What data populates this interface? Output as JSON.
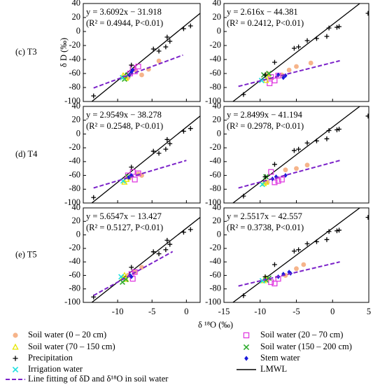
{
  "chart_data": {
    "type": "scatter",
    "ylabel": "δ D (‰)",
    "xlabel": "δ ¹⁸O (‰)",
    "legend": [
      {
        "name": "Soil water (0 – 20 cm)",
        "color": "#f6b48a",
        "marker": "circle"
      },
      {
        "name": "Soil water (20 – 70 cm)",
        "color": "#e03ce0",
        "marker": "square"
      },
      {
        "name": "Soil water (70 – 150 cm)",
        "color": "#e6e600",
        "marker": "triangle"
      },
      {
        "name": "Soil water (150 – 200 cm)",
        "color": "#2eab2e",
        "marker": "x"
      },
      {
        "name": "Precipitation",
        "color": "#000000",
        "marker": "plus"
      },
      {
        "name": "Stem water",
        "color": "#1a1adb",
        "marker": "diamond"
      },
      {
        "name": "Irrigation water",
        "color": "#1ee0e0",
        "marker": "x"
      }
    ],
    "lmwl": {
      "name": "LMWL",
      "color": "#000000",
      "slope": 8,
      "intercept": 10
    },
    "fit_line": {
      "name": "Line fitting of δD and  δ¹⁸O in soil water",
      "color": "#7b22c9"
    },
    "panels": [
      {
        "row_label": "(c) T3",
        "equation": "y = 3.6092x − 31.918",
        "stats": "(R² = 0.4944, P<0.01)",
        "fit": {
          "slope": 3.6092,
          "intercept": -31.918,
          "x": [
            -13.5,
            -0.5
          ]
        },
        "xlim": [
          -15,
          2
        ],
        "xticks": [
          -10,
          -5,
          0
        ],
        "ylim": [
          -100,
          40
        ],
        "yticks": [
          -100,
          -80,
          -60,
          -40,
          -20,
          0,
          20,
          40
        ],
        "series": [
          {
            "x": [
              -7.5,
              -6.5,
              -5.5,
              -4,
              -8.5
            ],
            "values": [
              -55,
              -62,
              -54,
              -42,
              -66
            ]
          },
          {
            "x": [
              -7.8,
              -7,
              -8.2,
              -7.5
            ],
            "values": [
              -52,
              -50,
              -60,
              -57
            ]
          },
          {
            "x": [
              -9.2,
              -8.8,
              -9
            ],
            "values": [
              -63,
              -67,
              -65
            ]
          },
          {
            "x": [
              -8.5,
              -9
            ],
            "values": [
              -62,
              -68
            ]
          },
          {
            "x": [
              -13.5,
              -8,
              -4.8,
              -4,
              -3,
              -2.8,
              -2.4,
              -0.4,
              0.6
            ],
            "values": [
              -92,
              -48,
              -25,
              -28,
              -22,
              -8,
              -14,
              4,
              8
            ]
          },
          {
            "x": [
              -8,
              -8.3,
              -7.8
            ],
            "values": [
              -58,
              -62,
              -55
            ]
          },
          {
            "x": [
              -9.3
            ],
            "values": [
              -66
            ]
          }
        ]
      },
      {
        "equation": "y = 2.616x − 44.381",
        "stats": "(R² = 0.2412, P<0.01)",
        "fit": {
          "slope": 2.616,
          "intercept": -44.381,
          "x": [
            -13,
            1
          ]
        },
        "xlim": [
          -15,
          5
        ],
        "xticks": [
          -15,
          -10,
          -5,
          0,
          5
        ],
        "ylim": [
          -100,
          40
        ],
        "yticks": [
          -100,
          -80,
          -60,
          -40,
          -20,
          0,
          20,
          40
        ],
        "series": [
          {
            "x": [
              -9,
              -7,
              -6,
              -5,
              -3
            ],
            "values": [
              -60,
              -62,
              -55,
              -50,
              -45
            ]
          },
          {
            "x": [
              -8.5,
              -8,
              -8.7,
              -7.5
            ],
            "values": [
              -65,
              -70,
              -74,
              -63
            ]
          },
          {
            "x": [
              -9.2,
              -8.8
            ],
            "values": [
              -70,
              -65
            ]
          },
          {
            "x": [
              -9.5,
              -8.8
            ],
            "values": [
              -62,
              -60
            ]
          },
          {
            "x": [
              -12.3,
              -9.3,
              -8,
              -5.3,
              -4.7,
              -3.5,
              -2.2,
              -0.8,
              -0.5,
              0.6,
              0.9,
              4.9
            ],
            "values": [
              -90,
              -62,
              -44,
              -24,
              -22,
              -13,
              -10,
              -7,
              5,
              6,
              7,
              26
            ]
          },
          {
            "x": [
              -7.5,
              -6.5,
              -6.8
            ],
            "values": [
              -62,
              -63,
              -66
            ]
          },
          {
            "x": [
              -9.8
            ],
            "values": [
              -70
            ]
          }
        ]
      },
      {
        "row_label": "(d) T4",
        "equation": "y = 2.9549x − 38.278",
        "stats": "(R² = 0.2548, P<0.01)",
        "fit": {
          "slope": 2.9549,
          "intercept": -38.278,
          "x": [
            -13.5,
            0
          ]
        },
        "xlim": [
          -15,
          2
        ],
        "xticks": [
          -10,
          -5,
          0
        ],
        "ylim": [
          -100,
          40
        ],
        "yticks": [
          -100,
          -80,
          -60,
          -40,
          -20,
          0,
          20,
          40
        ],
        "series": [
          {
            "x": [
              -8.3,
              -7,
              -6.5
            ],
            "values": [
              -64,
              -58,
              -60
            ]
          },
          {
            "x": [
              -7.8,
              -7,
              -7.5,
              -8.5
            ],
            "values": [
              -55,
              -57,
              -66,
              -60
            ]
          },
          {
            "x": [
              -9,
              -8.7
            ],
            "values": [
              -70,
              -66
            ]
          },
          {
            "x": [
              -8.5
            ],
            "values": [
              -62
            ]
          },
          {
            "x": [
              -13.5,
              -8,
              -4.8,
              -4,
              -3,
              -2.8,
              -2.4,
              -0.4,
              0.6
            ],
            "values": [
              -92,
              -48,
              -25,
              -28,
              -22,
              -8,
              -14,
              4,
              8
            ]
          },
          {
            "x": [
              -8,
              -8.4
            ],
            "values": [
              -60,
              -63
            ]
          },
          {
            "x": [
              -9.2
            ],
            "values": [
              -68
            ]
          }
        ]
      },
      {
        "equation": "y = 2.8499x − 41.194",
        "stats": "(R² = 0.2978, P<0.01)",
        "fit": {
          "slope": 2.8499,
          "intercept": -41.194,
          "x": [
            -13,
            1
          ]
        },
        "xlim": [
          -15,
          5
        ],
        "xticks": [
          -15,
          -10,
          -5,
          0,
          5
        ],
        "ylim": [
          -100,
          40
        ],
        "yticks": [
          -100,
          -80,
          -60,
          -40,
          -20,
          0,
          20,
          40
        ],
        "series": [
          {
            "x": [
              -9,
              -6.5,
              -5,
              -3.5
            ],
            "values": [
              -70,
              -52,
              -50,
              -45
            ]
          },
          {
            "x": [
              -8.5,
              -7.5,
              -8,
              -7
            ],
            "values": [
              -55,
              -68,
              -70,
              -66
            ]
          },
          {
            "x": [
              -9.5,
              -9.2
            ],
            "values": [
              -72,
              -70
            ]
          },
          {
            "x": [
              -9.2
            ],
            "values": [
              -62
            ]
          },
          {
            "x": [
              -12.3,
              -9.3,
              -8,
              -5.3,
              -4.7,
              -3.5,
              -2.2,
              -0.8,
              -0.5,
              0.6,
              0.9,
              4.9
            ],
            "values": [
              -90,
              -62,
              -44,
              -24,
              -22,
              -13,
              -10,
              -7,
              5,
              6,
              7,
              26
            ]
          },
          {
            "x": [
              -8.3,
              -7.8,
              -6.5
            ],
            "values": [
              -65,
              -62,
              -60
            ]
          },
          {
            "x": [
              -9.7
            ],
            "values": [
              -73
            ]
          }
        ]
      },
      {
        "row_label": "(e) T5",
        "equation": "y = 5.6547x − 13.427",
        "stats": "(R² = 0.5127, P<0.01)",
        "fit": {
          "slope": 5.6547,
          "intercept": -13.427,
          "x": [
            -13.5,
            -2
          ]
        },
        "xlim": [
          -15,
          2
        ],
        "xticks": [
          -10,
          -5,
          0
        ],
        "ylim": [
          -100,
          40
        ],
        "yticks": [
          -100,
          -80,
          -60,
          -40,
          -20,
          0,
          20,
          40
        ],
        "series": [
          {
            "x": [
              -8.5,
              -7.5,
              -6.5
            ],
            "values": [
              -60,
              -55,
              -48
            ]
          },
          {
            "x": [
              -7.5,
              -8,
              -7.8
            ],
            "values": [
              -55,
              -58,
              -65
            ]
          },
          {
            "x": [
              -9.2,
              -8.8,
              -9
            ],
            "values": [
              -63,
              -66,
              -60
            ]
          },
          {
            "x": [
              -8.8,
              -9.3
            ],
            "values": [
              -66,
              -70
            ]
          },
          {
            "x": [
              -13.5,
              -8,
              -4.8,
              -4,
              -3,
              -2.8,
              -2.4,
              -0.4,
              0.6
            ],
            "values": [
              -92,
              -48,
              -25,
              -28,
              -22,
              -8,
              -14,
              4,
              8
            ]
          },
          {
            "x": [
              -8.2,
              -8
            ],
            "values": [
              -60,
              -62
            ]
          },
          {
            "x": [
              -9.5
            ],
            "values": [
              -62
            ]
          }
        ]
      },
      {
        "equation": "y = 2.5517x − 42.557",
        "stats": "(R² = 0.3738, P<0.01)",
        "fit": {
          "slope": 2.5517,
          "intercept": -42.557,
          "x": [
            -13,
            1
          ]
        },
        "xlim": [
          -15,
          5
        ],
        "xticks": [
          -15,
          -10,
          -5,
          0,
          5
        ],
        "ylim": [
          -100,
          40
        ],
        "yticks": [
          -100,
          -80,
          -60,
          -40,
          -20,
          0,
          20,
          40
        ],
        "series": [
          {
            "x": [
              -9,
              -6.5,
              -5,
              -4
            ],
            "values": [
              -66,
              -60,
              -50,
              -44
            ]
          },
          {
            "x": [
              -8.5,
              -8,
              -7.5
            ],
            "values": [
              -70,
              -72,
              -65
            ]
          },
          {
            "x": [
              -9.5,
              -9.3
            ],
            "values": [
              -68,
              -64
            ]
          },
          {
            "x": [
              -9.2,
              -8.8
            ],
            "values": [
              -67,
              -64
            ]
          },
          {
            "x": [
              -12.3,
              -9.3,
              -8,
              -5.3,
              -4.7,
              -3.5,
              -2.2,
              -0.8,
              -0.5,
              0.6,
              0.9,
              4.9
            ],
            "values": [
              -90,
              -62,
              -44,
              -24,
              -22,
              -13,
              -10,
              -7,
              5,
              6,
              7,
              26
            ]
          },
          {
            "x": [
              -7.5,
              -6.8,
              -6,
              -5.8
            ],
            "values": [
              -62,
              -58,
              -55,
              -57
            ]
          },
          {
            "x": [
              -9.7
            ],
            "values": [
              -68
            ]
          }
        ]
      }
    ]
  }
}
